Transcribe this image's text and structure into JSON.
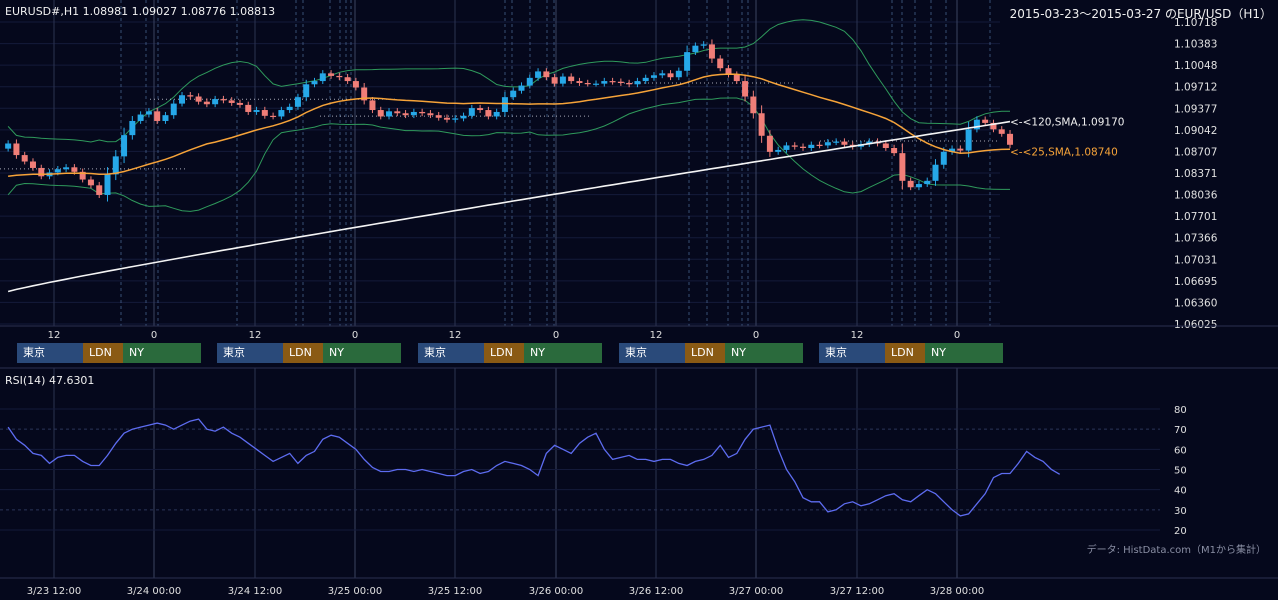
{
  "header": {
    "symbol_info": "EURUSD#,H1 1.08981 1.09027 1.08776 1.08813",
    "range_title": "2015-03-23～2015-03-27 のEUR/USD（H1）"
  },
  "sessions": [
    "東京",
    "LDN",
    "NY"
  ],
  "session_colors": {
    "tokyo": "#2a4a7a",
    "ldn": "#8a5a14",
    "ny": "#2a6a3c"
  },
  "rsi_label": "RSI(14) 47.6301",
  "credit": "データ: HistData.com（M1から集計）",
  "chart_data": [
    {
      "type": "candlestick",
      "title": "EUR/USD H1",
      "ylim": [
        1.06025,
        1.10718
      ],
      "y_ticks": [
        "1.10718",
        "1.10383",
        "1.10048",
        "1.09712",
        "1.09377",
        "1.09042",
        "1.08707",
        "1.08371",
        "1.08036",
        "1.07701",
        "1.07366",
        "1.07031",
        "1.06695",
        "1.06360",
        "1.06025"
      ],
      "hour_ticks": [
        "12",
        "0",
        "12",
        "0",
        "12",
        "0",
        "12",
        "0",
        "12",
        "0"
      ],
      "date_ticks": [
        "3/23 12:00",
        "3/24 00:00",
        "3/24 12:00",
        "3/25 00:00",
        "3/25 12:00",
        "3/26 00:00",
        "3/26 12:00",
        "3/27 00:00",
        "3/27 12:00",
        "3/28 00:00"
      ],
      "close": [
        1.0883,
        1.0865,
        1.0855,
        1.0845,
        1.0832,
        1.0838,
        1.0843,
        1.0846,
        1.0839,
        1.0827,
        1.0818,
        1.0803,
        1.0835,
        1.0863,
        1.0896,
        1.0918,
        1.0928,
        1.0933,
        1.0918,
        1.0927,
        1.0945,
        1.0958,
        1.0956,
        1.0948,
        1.0944,
        1.0952,
        1.095,
        1.0946,
        1.0943,
        1.0932,
        1.0935,
        1.0926,
        1.0925,
        1.0935,
        1.094,
        1.0955,
        1.0975,
        1.098,
        1.0992,
        1.0988,
        1.0986,
        1.098,
        1.097,
        1.095,
        1.0935,
        1.0925,
        1.0933,
        1.093,
        1.0927,
        1.0932,
        1.093,
        1.0927,
        1.0923,
        1.092,
        1.0922,
        1.0926,
        1.0938,
        1.0935,
        1.0925,
        1.0932,
        1.0955,
        1.0965,
        1.0973,
        1.0985,
        1.0995,
        1.0986,
        1.0976,
        1.0987,
        1.098,
        1.0977,
        1.0976,
        1.0976,
        1.098,
        1.0979,
        1.0977,
        1.0975,
        1.098,
        1.0985,
        1.0989,
        1.0992,
        1.0986,
        1.0996,
        1.1025,
        1.1035,
        1.1037,
        1.1015,
        1.1,
        1.099,
        1.098,
        1.0956,
        1.093,
        1.0895,
        1.087,
        1.0873,
        1.088,
        1.0878,
        1.0876,
        1.0881,
        1.088,
        1.0885,
        1.0886,
        1.0881,
        1.0878,
        1.0882,
        1.0886,
        1.0883,
        1.0876,
        1.0868,
        1.0825,
        1.0815,
        1.082,
        1.0825,
        1.085,
        1.087,
        1.0875,
        1.0872,
        1.0905,
        1.092,
        1.0915,
        1.0905,
        1.0898,
        1.0881
      ],
      "sma25_label": "<-<25,SMA,1.08740",
      "sma120_label": "<-<120,SMA,1.09170",
      "sma25_end": 1.0874,
      "sma120_end": 1.0917,
      "bands": "Bollinger(20,2)"
    },
    {
      "type": "line",
      "title": "RSI(14) 47.6301",
      "ylim": [
        20,
        80
      ],
      "y_ticks": [
        "80",
        "70",
        "60",
        "50",
        "40",
        "30",
        "20"
      ],
      "values": [
        71,
        65,
        62,
        58,
        57,
        53,
        56,
        57,
        57,
        54,
        52,
        52,
        57,
        63,
        68,
        70,
        71,
        72,
        73,
        72,
        70,
        72,
        74,
        75,
        70,
        69,
        71,
        68,
        66,
        63,
        60,
        57,
        54,
        56,
        58,
        53,
        57,
        59,
        65,
        67,
        66,
        63,
        60,
        55,
        51,
        49,
        49,
        50,
        50,
        49,
        50,
        49,
        48,
        47,
        47,
        49,
        50,
        48,
        49,
        52,
        54,
        53,
        52,
        50,
        47,
        58,
        62,
        60,
        58,
        63,
        66,
        68,
        60,
        55,
        56,
        57,
        55,
        55,
        54,
        55,
        55,
        53,
        52,
        54,
        55,
        57,
        62,
        56,
        58,
        65,
        70,
        71,
        72,
        60,
        50,
        44,
        36,
        34,
        34,
        29,
        30,
        33,
        34,
        32,
        33,
        35,
        37,
        38,
        35,
        34,
        37,
        40,
        38,
        34,
        30,
        27,
        28,
        33,
        38,
        46,
        48,
        48,
        53,
        59,
        56,
        54,
        50,
        47.6
      ]
    }
  ]
}
